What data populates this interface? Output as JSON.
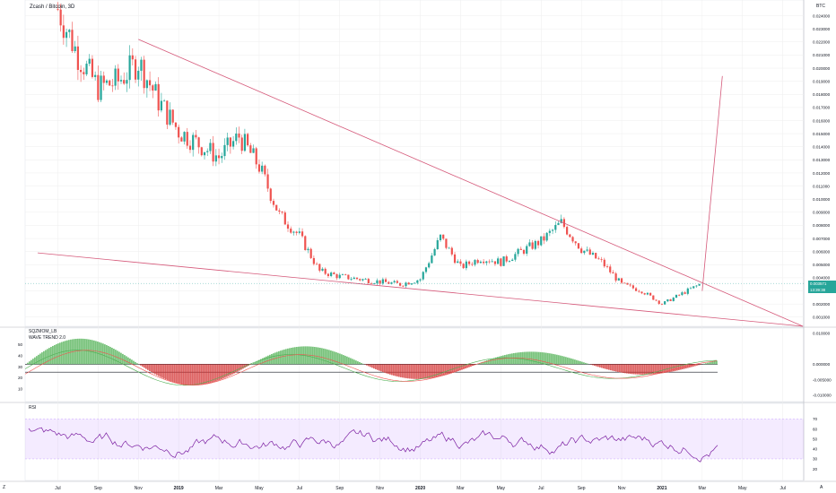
{
  "title": "Zcash / Bitcoin, 3D",
  "currency_label": "BTC",
  "ind1": "SQZMOM_LB",
  "ind2": "WAVE TREND 2.0",
  "rsi_label": "RSI",
  "last_price": "0.003571",
  "countdown": "13:39:38",
  "corner_left": "Z",
  "corner_right": "A",
  "colors": {
    "up": "#26a69a",
    "down": "#ef5350",
    "line": "#d5597a",
    "rsi": "#7b1fa2",
    "rsiband": "rgba(180,120,255,0.15)",
    "bg": "#ffffff",
    "grid": "#eeeeee"
  },
  "chart_data": {
    "type": "candlestick",
    "title": "Zcash / Bitcoin, 3D",
    "x_ticks": [
      "Jul",
      "Sep",
      "Nov",
      "2019",
      "Mar",
      "May",
      "Jul",
      "Sep",
      "Nov",
      "2020",
      "Mar",
      "May",
      "Jul",
      "Sep",
      "Nov",
      "2021",
      "Mar",
      "May",
      "Jul"
    ],
    "y_ticks": [
      "0.024000",
      "0.023000",
      "0.022000",
      "0.021000",
      "0.020000",
      "0.019000",
      "0.018000",
      "0.017000",
      "0.016000",
      "0.015000",
      "0.014000",
      "0.013000",
      "0.012000",
      "0.011000",
      "0.010000",
      "0.009000",
      "0.008000",
      "0.007000",
      "0.006000",
      "0.005000",
      "0.004000",
      "0.003000",
      "0.002000",
      "0.001000"
    ],
    "ylim": [
      0.0003,
      0.0252
    ],
    "close_path_x": [
      "2018-07",
      "2018-08",
      "2018-09",
      "2018-10",
      "2018-11",
      "2018-12",
      "2019-01",
      "2019-02",
      "2019-03",
      "2019-04",
      "2019-05",
      "2019-06",
      "2019-07",
      "2019-08",
      "2019-09",
      "2019-10",
      "2019-11",
      "2019-12",
      "2020-01",
      "2020-02",
      "2020-03",
      "2020-04",
      "2020-05",
      "2020-06",
      "2020-07",
      "2020-08",
      "2020-09",
      "2020-10",
      "2020-11",
      "2020-12",
      "2021-01",
      "2021-02",
      "2021-03"
    ],
    "close_path_y": [
      0.0245,
      0.021,
      0.0185,
      0.019,
      0.0205,
      0.0175,
      0.0152,
      0.0142,
      0.0132,
      0.0148,
      0.0125,
      0.0088,
      0.0072,
      0.0045,
      0.0041,
      0.0039,
      0.0037,
      0.0035,
      0.0039,
      0.0071,
      0.0048,
      0.0055,
      0.0052,
      0.006,
      0.0068,
      0.0082,
      0.0062,
      0.0052,
      0.0035,
      0.003,
      0.002,
      0.0028,
      0.0036
    ],
    "trendlines": [
      {
        "from": [
          "2018-11",
          "0.0222"
        ],
        "to": [
          "2021-08",
          "0.0003"
        ]
      },
      {
        "from": [
          "2018-06",
          "0.0059"
        ],
        "to": [
          "2021-08",
          "0.0003"
        ]
      },
      {
        "from": [
          "2021-03",
          "0.003"
        ],
        "to": [
          "2021-04",
          "0.0194"
        ]
      }
    ],
    "sqz_ticks": [
      "0.010000",
      "0.000000",
      "-0.005000",
      "-0.010000"
    ],
    "wt_ticks": [
      "50",
      "40",
      "30",
      "20",
      "10"
    ],
    "rsi_ticks": [
      "70",
      "60",
      "50",
      "40",
      "30",
      "20"
    ],
    "rsi_band": [
      30,
      70
    ]
  }
}
